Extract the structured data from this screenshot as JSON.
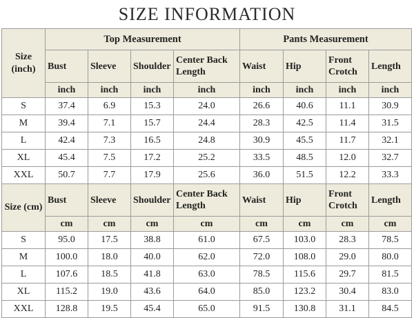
{
  "title": "SIZE INFORMATION",
  "groups": {
    "top": "Top Measurement",
    "pants": "Pants Measurement"
  },
  "columns": [
    "Bust",
    "Sleeve",
    "Shoulder",
    "Center Back Length",
    "Waist",
    "Hip",
    "Front Crotch",
    "Length"
  ],
  "inch_section": {
    "size_label": "Size (inch)",
    "unit": "inch",
    "rows": [
      {
        "size": "S",
        "values": [
          "37.4",
          "6.9",
          "15.3",
          "24.0",
          "26.6",
          "40.6",
          "11.1",
          "30.9"
        ]
      },
      {
        "size": "M",
        "values": [
          "39.4",
          "7.1",
          "15.7",
          "24.4",
          "28.3",
          "42.5",
          "11.4",
          "31.5"
        ]
      },
      {
        "size": "L",
        "values": [
          "42.4",
          "7.3",
          "16.5",
          "24.8",
          "30.9",
          "45.5",
          "11.7",
          "32.1"
        ]
      },
      {
        "size": "XL",
        "values": [
          "45.4",
          "7.5",
          "17.2",
          "25.2",
          "33.5",
          "48.5",
          "12.0",
          "32.7"
        ]
      },
      {
        "size": "XXL",
        "values": [
          "50.7",
          "7.7",
          "17.9",
          "25.6",
          "36.0",
          "51.5",
          "12.2",
          "33.3"
        ]
      }
    ]
  },
  "cm_section": {
    "size_label": "Size (cm)",
    "unit": "cm",
    "rows": [
      {
        "size": "S",
        "values": [
          "95.0",
          "17.5",
          "38.8",
          "61.0",
          "67.5",
          "103.0",
          "28.3",
          "78.5"
        ]
      },
      {
        "size": "M",
        "values": [
          "100.0",
          "18.0",
          "40.0",
          "62.0",
          "72.0",
          "108.0",
          "29.0",
          "80.0"
        ]
      },
      {
        "size": "L",
        "values": [
          "107.6",
          "18.5",
          "41.8",
          "63.0",
          "78.5",
          "115.6",
          "29.7",
          "81.5"
        ]
      },
      {
        "size": "XL",
        "values": [
          "115.2",
          "19.0",
          "43.6",
          "64.0",
          "85.0",
          "123.2",
          "30.4",
          "83.0"
        ]
      },
      {
        "size": "XXL",
        "values": [
          "128.8",
          "19.5",
          "45.4",
          "65.0",
          "91.5",
          "130.8",
          "31.1",
          "84.5"
        ]
      }
    ]
  }
}
